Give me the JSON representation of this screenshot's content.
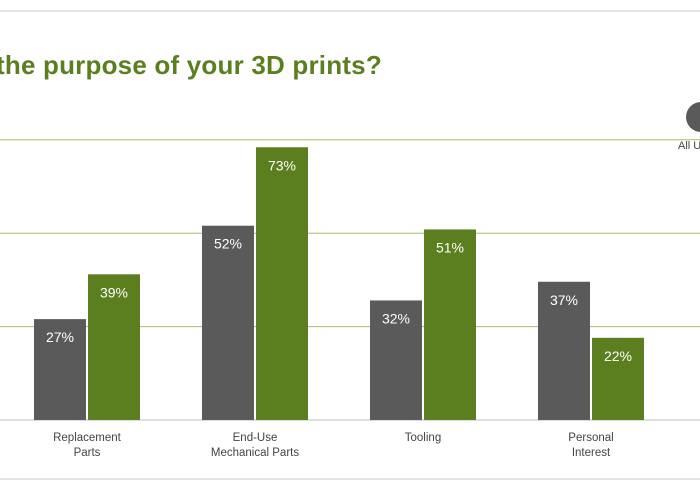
{
  "title": "the purpose of your 3D prints?",
  "legend": {
    "entries": [
      "All U"
    ],
    "colors": [
      "#5a5a5a",
      "#5b7f1f"
    ]
  },
  "chart_data": {
    "type": "bar",
    "title": "the purpose of your 3D prints?",
    "categories": [
      [
        "Replacement",
        "Parts"
      ],
      [
        "End-Use",
        "Mechanical Parts"
      ],
      [
        "Tooling"
      ],
      [
        "Personal",
        "Interest"
      ]
    ],
    "series": [
      {
        "name": "All U",
        "values": [
          27,
          52,
          32,
          37
        ],
        "labels": [
          "27%",
          "52%",
          "32%",
          "37%"
        ],
        "color": "#5a5a5a"
      },
      {
        "values": [
          39,
          73,
          51,
          22
        ],
        "labels": [
          "39%",
          "73%",
          "51%",
          "22%"
        ],
        "color": "#5b7f1f"
      }
    ],
    "ylim": [
      0,
      80
    ],
    "grid": true,
    "legend_position": "top-right"
  }
}
